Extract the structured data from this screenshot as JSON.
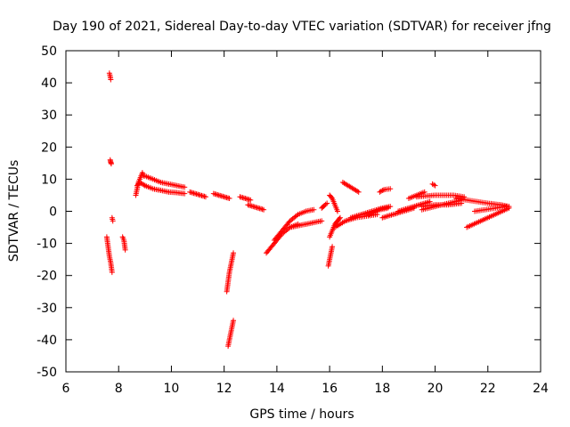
{
  "chart_data": {
    "type": "scatter",
    "title": "Day 190 of 2021, Sidereal Day-to-day VTEC variation (SDTVAR) for receiver jfng",
    "xlabel": "GPS time / hours",
    "ylabel": "SDTVAR / TECUs",
    "xlim": [
      6,
      24
    ],
    "ylim": [
      -50,
      50
    ],
    "xticks": [
      6,
      8,
      10,
      12,
      14,
      16,
      18,
      20,
      22,
      24
    ],
    "yticks": [
      -50,
      -40,
      -30,
      -20,
      -10,
      0,
      10,
      20,
      30,
      40,
      50
    ],
    "marker": "+",
    "marker_color": "#ff0000",
    "grid": false,
    "segments": [
      {
        "x": [
          7.65,
          7.68,
          7.7
        ],
        "y": [
          43,
          42,
          41
        ]
      },
      {
        "x": [
          7.68,
          7.7,
          7.72
        ],
        "y": [
          16,
          15.3,
          14.8
        ]
      },
      {
        "x": [
          7.75,
          7.78
        ],
        "y": [
          -2,
          -3
        ]
      },
      {
        "x": [
          7.55,
          7.6,
          7.65,
          7.7,
          7.75
        ],
        "y": [
          -8,
          -11,
          -14,
          -16,
          -19
        ]
      },
      {
        "x": [
          8.15,
          8.2,
          8.25
        ],
        "y": [
          -8,
          -9,
          -12
        ]
      },
      {
        "x": [
          8.65,
          8.7,
          8.75,
          8.8,
          8.85,
          8.9,
          8.95
        ],
        "y": [
          5,
          7,
          9,
          10,
          11,
          12,
          11
        ]
      },
      {
        "x": [
          8.7,
          8.8,
          8.9,
          9.0
        ],
        "y": [
          8,
          9,
          8.5,
          8
        ]
      },
      {
        "x": [
          9.0,
          9.3,
          9.6,
          9.9,
          10.2,
          10.5
        ],
        "y": [
          11,
          10,
          9,
          8.5,
          8,
          7.5
        ]
      },
      {
        "x": [
          9.0,
          9.3,
          9.6,
          9.9,
          10.2,
          10.5
        ],
        "y": [
          8,
          7,
          6.5,
          6,
          5.8,
          5.5
        ]
      },
      {
        "x": [
          10.7,
          10.9,
          11.1,
          11.3
        ],
        "y": [
          6,
          5.5,
          5,
          4.5
        ]
      },
      {
        "x": [
          11.6,
          11.8,
          12.0,
          12.2
        ],
        "y": [
          5.5,
          5,
          4.5,
          4
        ]
      },
      {
        "x": [
          12.1,
          12.15,
          12.2,
          12.25,
          12.3,
          12.35
        ],
        "y": [
          -25,
          -22,
          -19,
          -17,
          -15,
          -13
        ]
      },
      {
        "x": [
          12.15,
          12.2,
          12.25,
          12.3,
          12.35
        ],
        "y": [
          -42,
          -40,
          -38,
          -36,
          -34
        ]
      },
      {
        "x": [
          12.6,
          12.8,
          13.0
        ],
        "y": [
          4.5,
          4,
          3.5
        ]
      },
      {
        "x": [
          12.9,
          13.1,
          13.3,
          13.5
        ],
        "y": [
          2,
          1.5,
          1,
          0.5
        ]
      },
      {
        "x": [
          13.6,
          13.9,
          14.2,
          14.5,
          14.8
        ],
        "y": [
          -13,
          -10,
          -7,
          -5,
          -4
        ]
      },
      {
        "x": [
          13.9,
          14.2,
          14.5,
          14.8,
          15.1,
          15.4
        ],
        "y": [
          -9,
          -6,
          -3,
          -1,
          0,
          0.5
        ]
      },
      {
        "x": [
          14.5,
          14.8,
          15.1,
          15.4,
          15.7
        ],
        "y": [
          -5,
          -4.5,
          -4,
          -3.5,
          -3
        ]
      },
      {
        "x": [
          15.7,
          15.8,
          15.9
        ],
        "y": [
          1,
          1.8,
          2.5
        ]
      },
      {
        "x": [
          15.95,
          16.0,
          16.05,
          16.1
        ],
        "y": [
          -17,
          -15,
          -13,
          -11
        ]
      },
      {
        "x": [
          16.0,
          16.1,
          16.2,
          16.3,
          16.4
        ],
        "y": [
          -8,
          -6,
          -4,
          -3,
          -2
        ]
      },
      {
        "x": [
          16.0,
          16.1,
          16.2,
          16.3
        ],
        "y": [
          5,
          4,
          2,
          0
        ]
      },
      {
        "x": [
          16.5,
          16.7,
          16.9,
          17.1
        ],
        "y": [
          9,
          8,
          7,
          6
        ]
      },
      {
        "x": [
          16.2,
          16.6,
          17.0,
          17.4,
          17.8
        ],
        "y": [
          -5,
          -3,
          -2,
          -1.5,
          -1
        ]
      },
      {
        "x": [
          16.8,
          17.2,
          17.6,
          18.0,
          18.3
        ],
        "y": [
          -2,
          -1,
          0,
          1,
          1.5
        ]
      },
      {
        "x": [
          17.5,
          17.9,
          18.2
        ],
        "y": [
          -1,
          0.5,
          1
        ]
      },
      {
        "x": [
          17.9,
          18.0,
          18.1,
          18.3
        ],
        "y": [
          6,
          6.5,
          6.8,
          7
        ]
      },
      {
        "x": [
          18.0,
          18.4,
          18.8,
          19.2
        ],
        "y": [
          -2,
          -1,
          0,
          1
        ]
      },
      {
        "x": [
          18.6,
          19.0,
          19.4,
          19.8
        ],
        "y": [
          0,
          1,
          2,
          3
        ]
      },
      {
        "x": [
          19.0,
          19.3,
          19.6
        ],
        "y": [
          4,
          5,
          6
        ]
      },
      {
        "x": [
          19.9,
          20.0
        ],
        "y": [
          8.5,
          8
        ]
      },
      {
        "x": [
          19.5,
          20.0,
          20.5,
          21.0
        ],
        "y": [
          0.5,
          1.5,
          2.5,
          3.5
        ]
      },
      {
        "x": [
          19.3,
          20.0,
          20.7,
          21.1
        ],
        "y": [
          4.5,
          5,
          5,
          4.5
        ]
      },
      {
        "x": [
          19.5,
          20.0,
          20.5,
          21.0
        ],
        "y": [
          1.5,
          2,
          2,
          2.5
        ]
      },
      {
        "x": [
          20.8,
          21.2,
          21.6,
          22.0,
          22.5,
          22.8
        ],
        "y": [
          4,
          3.5,
          3,
          2.5,
          2,
          1.5
        ]
      },
      {
        "x": [
          21.2,
          21.6,
          22.0,
          22.4,
          22.8
        ],
        "y": [
          -5,
          -3.5,
          -2,
          -0.5,
          1
        ]
      },
      {
        "x": [
          21.5,
          21.9,
          22.3,
          22.7
        ],
        "y": [
          0,
          0.5,
          1,
          1.5
        ]
      }
    ]
  }
}
